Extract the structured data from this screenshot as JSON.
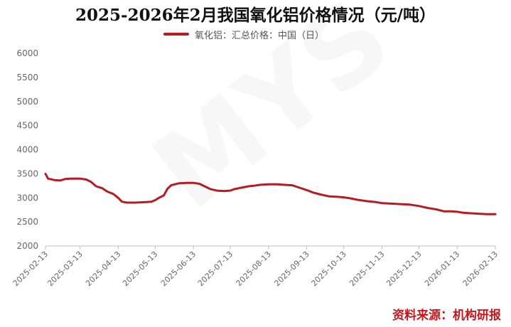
{
  "chart_data": {
    "type": "line",
    "title": "2025-2026年2月我国氧化铝价格情况（元/吨）",
    "source": "资料来源：机构研报",
    "ylim": [
      2000,
      6000
    ],
    "yticks": [
      "6000",
      "5500",
      "5000",
      "4500",
      "4000",
      "3500",
      "3000",
      "2500",
      "2000"
    ],
    "xticks": [
      "2025-02-13",
      "2025-03-13",
      "2025-04-13",
      "2025-05-13",
      "2025-06-13",
      "2025-07-13",
      "2025-08-13",
      "2025-09-13",
      "2025-10-13",
      "2025-11-13",
      "2025-12-13",
      "2026-01-13",
      "2026-02-13"
    ],
    "grid": false,
    "legend_position": "top",
    "series": [
      {
        "name": "氧化铝：汇总价格：中国（日）",
        "color": "#b51d22",
        "points": [
          [
            "2025-02-13",
            3500
          ],
          [
            "2025-02-15",
            3400
          ],
          [
            "2025-02-20",
            3370
          ],
          [
            "2025-02-25",
            3360
          ],
          [
            "2025-03-01",
            3390
          ],
          [
            "2025-03-06",
            3400
          ],
          [
            "2025-03-13",
            3400
          ],
          [
            "2025-03-18",
            3380
          ],
          [
            "2025-03-22",
            3330
          ],
          [
            "2025-03-26",
            3240
          ],
          [
            "2025-03-31",
            3200
          ],
          [
            "2025-04-04",
            3130
          ],
          [
            "2025-04-09",
            3080
          ],
          [
            "2025-04-13",
            3000
          ],
          [
            "2025-04-16",
            2920
          ],
          [
            "2025-04-20",
            2900
          ],
          [
            "2025-04-27",
            2900
          ],
          [
            "2025-05-06",
            2910
          ],
          [
            "2025-05-10",
            2920
          ],
          [
            "2025-05-13",
            2950
          ],
          [
            "2025-05-16",
            3000
          ],
          [
            "2025-05-20",
            3050
          ],
          [
            "2025-05-23",
            3190
          ],
          [
            "2025-05-26",
            3260
          ],
          [
            "2025-06-01",
            3300
          ],
          [
            "2025-06-08",
            3310
          ],
          [
            "2025-06-13",
            3310
          ],
          [
            "2025-06-18",
            3290
          ],
          [
            "2025-06-22",
            3240
          ],
          [
            "2025-06-27",
            3180
          ],
          [
            "2025-07-02",
            3150
          ],
          [
            "2025-07-08",
            3140
          ],
          [
            "2025-07-13",
            3150
          ],
          [
            "2025-07-16",
            3180
          ],
          [
            "2025-07-22",
            3210
          ],
          [
            "2025-07-28",
            3240
          ],
          [
            "2025-08-01",
            3250
          ],
          [
            "2025-08-06",
            3270
          ],
          [
            "2025-08-13",
            3280
          ],
          [
            "2025-08-20",
            3280
          ],
          [
            "2025-08-26",
            3270
          ],
          [
            "2025-09-01",
            3260
          ],
          [
            "2025-09-07",
            3210
          ],
          [
            "2025-09-13",
            3160
          ],
          [
            "2025-09-18",
            3110
          ],
          [
            "2025-09-24",
            3070
          ],
          [
            "2025-10-01",
            3030
          ],
          [
            "2025-10-08",
            3020
          ],
          [
            "2025-10-13",
            3010
          ],
          [
            "2025-10-18",
            2990
          ],
          [
            "2025-10-24",
            2960
          ],
          [
            "2025-11-01",
            2930
          ],
          [
            "2025-11-08",
            2910
          ],
          [
            "2025-11-13",
            2890
          ],
          [
            "2025-11-20",
            2880
          ],
          [
            "2025-11-28",
            2870
          ],
          [
            "2025-12-05",
            2860
          ],
          [
            "2025-12-13",
            2830
          ],
          [
            "2025-12-20",
            2790
          ],
          [
            "2025-12-27",
            2760
          ],
          [
            "2026-01-02",
            2720
          ],
          [
            "2026-01-08",
            2720
          ],
          [
            "2026-01-13",
            2710
          ],
          [
            "2026-01-18",
            2690
          ],
          [
            "2026-01-23",
            2680
          ],
          [
            "2026-01-30",
            2670
          ],
          [
            "2026-02-06",
            2660
          ],
          [
            "2026-02-13",
            2660
          ]
        ]
      }
    ]
  }
}
